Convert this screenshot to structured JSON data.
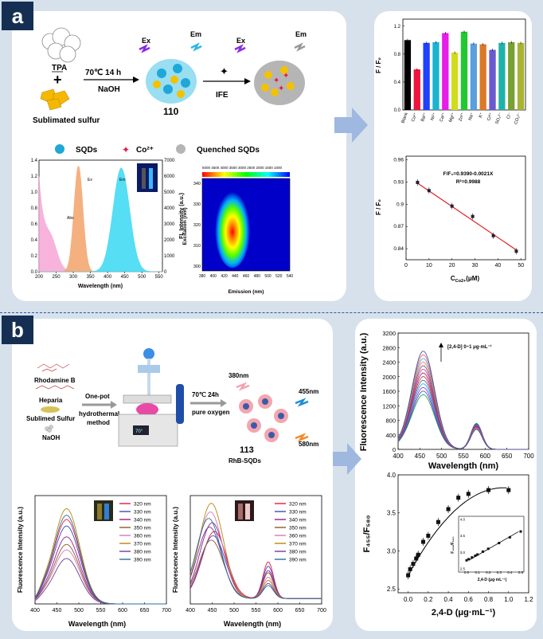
{
  "labels": {
    "a": "a",
    "b": "b"
  },
  "a": {
    "tpa": "TPA",
    "sulfur": "Sublimated sulfur",
    "cond": "70℃ 14 h",
    "naoh": "NaOH",
    "ex": "Ex",
    "em": "Em",
    "n110": "110",
    "ife": "IFE",
    "legend": [
      "SQDs",
      "Co²⁺",
      "Quenched SQDs"
    ],
    "spec": {
      "xlabel": "Wavelength (nm)",
      "ylabel": "FL Intensity (a.u.)",
      "xticks": [
        "200",
        "250",
        "300",
        "350",
        "400",
        "450",
        "500",
        "550"
      ],
      "yl": [
        "0.0",
        "0.2",
        "0.4",
        "0.6",
        "0.8",
        "1.0",
        "1.2",
        "1.4"
      ],
      "yr": [
        "0",
        "1000",
        "2000",
        "3000",
        "4000",
        "5000",
        "6000",
        "7000"
      ],
      "abs": "Abs",
      "ex": "Ex",
      "em": "Em"
    },
    "map": {
      "xlabel": "Emission (nm)",
      "ylabel": "Excitation (nm)",
      "xticks": [
        "380",
        "400",
        "420",
        "440",
        "460",
        "480",
        "500",
        "520",
        "540"
      ],
      "yticks": [
        "300",
        "310",
        "320",
        "330",
        "340"
      ],
      "scale": "5000 4500 4000 3500 3000 2500 2000 1500 1000"
    },
    "bar": {
      "ylabel": "F / F₀",
      "yticks": [
        "0.0",
        "0.4",
        "0.8",
        "1.2"
      ],
      "categories": [
        "Blank",
        "Co²⁺",
        "Ba²⁺",
        "Ni²⁺",
        "Ca²⁺",
        "Mg²⁺",
        "Zn²⁺",
        "Na⁺",
        "K⁺",
        "Cr³⁺",
        "SO₄²⁻",
        "Cl⁻",
        "CO₃²⁻"
      ],
      "values": [
        1.0,
        0.58,
        0.96,
        0.97,
        1.1,
        0.82,
        1.12,
        0.95,
        0.94,
        0.86,
        0.96,
        0.97,
        0.96
      ],
      "colors": [
        "#000000",
        "#f0143c",
        "#1e40ff",
        "#19b4d2",
        "#e61ee6",
        "#d2dc1e",
        "#22c832",
        "#5aa0dc",
        "#dc7828",
        "#6a5acd",
        "#20b2aa",
        "#78a032",
        "#a8b432"
      ]
    },
    "lin": {
      "xlabel": "C",
      "xsub": "Co2+",
      "xunit": "(μM)",
      "ylabel": "F / F₀",
      "eq": "F/F₀=0.9390-0.0021X",
      "r2": "R²=0.9988",
      "xticks": [
        "0",
        "10",
        "20",
        "30",
        "40",
        "50"
      ],
      "yticks": [
        "0.84",
        "0.87",
        "0.9",
        "0.93",
        "0.96"
      ],
      "x": [
        5,
        10,
        20,
        29,
        38,
        48
      ],
      "y": [
        0.9295,
        0.9185,
        0.8975,
        0.8835,
        0.8575,
        0.8365
      ]
    }
  },
  "b": {
    "reagents": [
      "Rhodamine B",
      "Heparia",
      "Sublimed Sulfur",
      "NaOH"
    ],
    "onepot": "One-pot",
    "hydro": "hydrothermal",
    "method": "method",
    "cond": "70℃ 24h",
    "oxy": "pure oxygen",
    "n380": "380nm",
    "n455": "455nm",
    "n580": "580nm",
    "n113": "113",
    "rhb": "RhB-SQDs",
    "display": "70°",
    "fl": {
      "ylabel": "Fluorescence Intensity (a.u.)",
      "xlabel": "Wavelength (nm)",
      "ann": "[2,4-D] 0~1 μg·mL⁻¹",
      "xticks": [
        "400",
        "450",
        "500",
        "550",
        "600",
        "650",
        "700"
      ],
      "yticks": [
        "0",
        "400",
        "800",
        "1200",
        "1600",
        "2000",
        "2400",
        "2800",
        "3200"
      ]
    },
    "ratio": {
      "ylabel": "F₄₅₅/F₅₈₀",
      "xlabel": "2,4-D (μg·mL⁻¹)",
      "xticks": [
        "0.0",
        "0.2",
        "0.4",
        "0.6",
        "0.8",
        "1.0",
        "1.2"
      ],
      "yticks": [
        "2.5",
        "3.0",
        "3.5",
        "4.0"
      ],
      "x": [
        0.0,
        0.02,
        0.05,
        0.08,
        0.1,
        0.15,
        0.2,
        0.3,
        0.4,
        0.5,
        0.6,
        0.8,
        1.0
      ],
      "y": [
        2.68,
        2.76,
        2.83,
        2.9,
        2.95,
        3.12,
        3.2,
        3.38,
        3.55,
        3.7,
        3.75,
        3.8,
        3.8
      ],
      "inset_xlabel": "2,4-D (μg·mL⁻¹)",
      "inset_ylabel": "F₄₅₅/F₅₈₀",
      "inset_xticks": [
        "0.0",
        "0.1",
        "0.2",
        "0.3",
        "0.4",
        "0.5"
      ],
      "inset_yticks": [
        "2.5",
        "3.0",
        "3.5",
        "4.0"
      ]
    },
    "ex1": {
      "ylabel": "Fluorescence Intensity (a.u.)",
      "xlabel": "Wavelength (nm)",
      "xticks": [
        "400",
        "450",
        "500",
        "550",
        "600",
        "650",
        "700"
      ],
      "legend": [
        "320 nm",
        "330 nm",
        "340 nm",
        "350 nm",
        "360 nm",
        "370 nm",
        "380 nm",
        "390 nm"
      ]
    },
    "ex2": {
      "ylabel": "Fluorescence Intensity (a.u.)",
      "xlabel": "Wavelength (nm)",
      "xticks": [
        "400",
        "450",
        "500",
        "550",
        "600",
        "650",
        "700"
      ],
      "legend": [
        "320 nm",
        "330 nm",
        "340 nm",
        "350 nm",
        "360 nm",
        "370 nm",
        "380 nm",
        "390 nm"
      ]
    },
    "exColors": [
      "#e6194b",
      "#3b4cc0",
      "#9b1c8c",
      "#8b5a2b",
      "#d67ab1",
      "#b8860b",
      "#6a3d9a",
      "#2a6f97"
    ]
  }
}
